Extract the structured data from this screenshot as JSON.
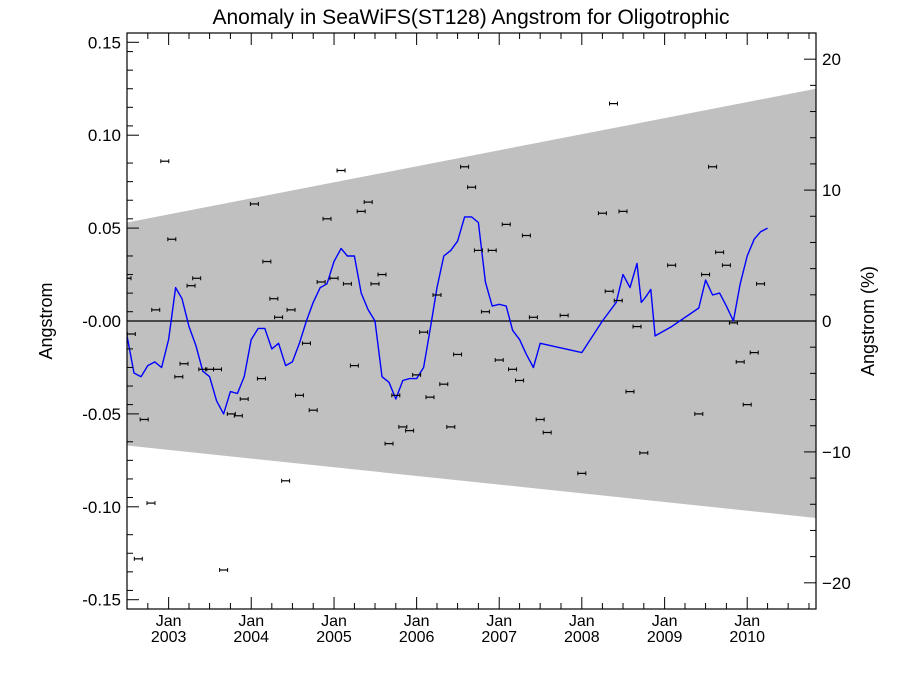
{
  "chart_data": {
    "type": "scatter",
    "title": "Anomaly in SeaWiFS(ST128) Angstrom for Oligotrophic",
    "ylabel": "Angstrom",
    "ylabel_right": "Angstrom (%)",
    "xlim": [
      "2002-07-01",
      "2010-11-01"
    ],
    "ylim": [
      -0.155,
      0.155
    ],
    "ylim_right": [
      -22,
      22
    ],
    "y_ticks": [
      {
        "value": 0.15,
        "label": "0.15"
      },
      {
        "value": 0.1,
        "label": "0.10"
      },
      {
        "value": 0.05,
        "label": "0.05"
      },
      {
        "value": 0.0,
        "label": "-0.00"
      },
      {
        "value": -0.05,
        "label": "-0.05"
      },
      {
        "value": -0.1,
        "label": "-0.10"
      },
      {
        "value": -0.15,
        "label": "-0.15"
      }
    ],
    "y_ticks_right": [
      {
        "value": 20,
        "label": "20"
      },
      {
        "value": 10,
        "label": "10"
      },
      {
        "value": 0,
        "label": "0"
      },
      {
        "value": -10,
        "label": "−10"
      },
      {
        "value": -20,
        "label": "−20"
      }
    ],
    "x_ticks": [
      {
        "date": "2003-01-01",
        "month": "Jan",
        "year": "2003"
      },
      {
        "date": "2004-01-01",
        "month": "Jan",
        "year": "2004"
      },
      {
        "date": "2005-01-01",
        "month": "Jan",
        "year": "2005"
      },
      {
        "date": "2006-01-01",
        "month": "Jan",
        "year": "2006"
      },
      {
        "date": "2007-01-01",
        "month": "Jan",
        "year": "2007"
      },
      {
        "date": "2008-01-01",
        "month": "Jan",
        "year": "2008"
      },
      {
        "date": "2009-01-01",
        "month": "Jan",
        "year": "2009"
      },
      {
        "date": "2010-01-01",
        "month": "Jan",
        "year": "2010"
      }
    ],
    "envelope": {
      "color": "#c0c0c0",
      "start": {
        "date": "2002-07-01",
        "upper": 0.053,
        "lower": -0.067
      },
      "end": {
        "date": "2010-11-01",
        "upper": 0.125,
        "lower": -0.106
      }
    },
    "zero_line": true,
    "points": [
      {
        "x": "2002-07-01",
        "y": 0.023
      },
      {
        "x": "2002-07-20",
        "y": -0.007
      },
      {
        "x": "2002-08-20",
        "y": -0.128
      },
      {
        "x": "2002-09-15",
        "y": -0.053
      },
      {
        "x": "2002-10-15",
        "y": -0.098
      },
      {
        "x": "2002-11-05",
        "y": 0.006
      },
      {
        "x": "2002-12-15",
        "y": 0.086
      },
      {
        "x": "2003-01-15",
        "y": 0.044
      },
      {
        "x": "2003-02-15",
        "y": -0.03
      },
      {
        "x": "2003-03-10",
        "y": -0.023
      },
      {
        "x": "2003-04-10",
        "y": 0.019
      },
      {
        "x": "2003-05-05",
        "y": 0.023
      },
      {
        "x": "2003-06-01",
        "y": -0.026
      },
      {
        "x": "2003-07-01",
        "y": -0.026
      },
      {
        "x": "2003-08-05",
        "y": -0.026
      },
      {
        "x": "2003-09-01",
        "y": -0.134
      },
      {
        "x": "2003-10-05",
        "y": -0.05
      },
      {
        "x": "2003-11-05",
        "y": -0.051
      },
      {
        "x": "2003-12-01",
        "y": -0.042
      },
      {
        "x": "2004-01-15",
        "y": 0.063
      },
      {
        "x": "2004-02-15",
        "y": -0.031
      },
      {
        "x": "2004-03-10",
        "y": 0.032
      },
      {
        "x": "2004-04-10",
        "y": 0.012
      },
      {
        "x": "2004-05-01",
        "y": 0.002
      },
      {
        "x": "2004-06-01",
        "y": -0.086
      },
      {
        "x": "2004-06-25",
        "y": 0.006
      },
      {
        "x": "2004-08-01",
        "y": -0.04
      },
      {
        "x": "2004-09-01",
        "y": -0.012
      },
      {
        "x": "2004-10-01",
        "y": -0.048
      },
      {
        "x": "2004-11-05",
        "y": 0.021
      },
      {
        "x": "2004-12-01",
        "y": 0.055
      },
      {
        "x": "2005-01-01",
        "y": 0.023
      },
      {
        "x": "2005-02-01",
        "y": 0.081
      },
      {
        "x": "2005-03-01",
        "y": 0.02
      },
      {
        "x": "2005-04-01",
        "y": -0.024
      },
      {
        "x": "2005-05-01",
        "y": 0.059
      },
      {
        "x": "2005-06-01",
        "y": 0.064
      },
      {
        "x": "2005-07-01",
        "y": 0.02
      },
      {
        "x": "2005-08-01",
        "y": 0.025
      },
      {
        "x": "2005-09-01",
        "y": -0.066
      },
      {
        "x": "2005-10-01",
        "y": -0.04
      },
      {
        "x": "2005-11-01",
        "y": -0.057
      },
      {
        "x": "2005-12-01",
        "y": -0.059
      },
      {
        "x": "2006-01-01",
        "y": -0.029
      },
      {
        "x": "2006-02-01",
        "y": -0.006
      },
      {
        "x": "2006-03-01",
        "y": -0.041
      },
      {
        "x": "2006-04-01",
        "y": 0.014
      },
      {
        "x": "2006-05-01",
        "y": -0.034
      },
      {
        "x": "2006-06-01",
        "y": -0.057
      },
      {
        "x": "2006-07-01",
        "y": -0.018
      },
      {
        "x": "2006-08-01",
        "y": 0.083
      },
      {
        "x": "2006-09-01",
        "y": 0.072
      },
      {
        "x": "2006-10-01",
        "y": 0.038
      },
      {
        "x": "2006-11-01",
        "y": 0.005
      },
      {
        "x": "2006-12-01",
        "y": 0.038
      },
      {
        "x": "2007-01-01",
        "y": -0.021
      },
      {
        "x": "2007-02-01",
        "y": 0.052
      },
      {
        "x": "2007-03-01",
        "y": -0.026
      },
      {
        "x": "2007-04-01",
        "y": -0.032
      },
      {
        "x": "2007-05-01",
        "y": 0.046
      },
      {
        "x": "2007-06-01",
        "y": 0.002
      },
      {
        "x": "2007-07-01",
        "y": -0.053
      },
      {
        "x": "2007-08-01",
        "y": -0.06
      },
      {
        "x": "2007-10-15",
        "y": 0.003
      },
      {
        "x": "2008-01-01",
        "y": -0.082
      },
      {
        "x": "2008-04-01",
        "y": 0.058
      },
      {
        "x": "2008-05-01",
        "y": 0.016
      },
      {
        "x": "2008-05-20",
        "y": 0.117
      },
      {
        "x": "2008-06-10",
        "y": 0.011
      },
      {
        "x": "2008-07-01",
        "y": 0.059
      },
      {
        "x": "2008-08-01",
        "y": -0.038
      },
      {
        "x": "2008-09-01",
        "y": -0.003
      },
      {
        "x": "2008-10-01",
        "y": -0.071
      },
      {
        "x": "2009-02-01",
        "y": 0.03
      },
      {
        "x": "2009-06-01",
        "y": -0.05
      },
      {
        "x": "2009-07-01",
        "y": 0.025
      },
      {
        "x": "2009-08-01",
        "y": 0.083
      },
      {
        "x": "2009-09-01",
        "y": 0.037
      },
      {
        "x": "2009-10-01",
        "y": 0.03
      },
      {
        "x": "2009-11-01",
        "y": -0.001
      },
      {
        "x": "2009-12-01",
        "y": -0.022
      },
      {
        "x": "2010-01-01",
        "y": -0.045
      },
      {
        "x": "2010-02-01",
        "y": -0.017
      },
      {
        "x": "2010-03-01",
        "y": 0.02
      }
    ],
    "series": [
      {
        "color": "#0000ff",
        "points": [
          {
            "x": "2002-07-01",
            "y": -0.008
          },
          {
            "x": "2002-08-01",
            "y": -0.028
          },
          {
            "x": "2002-09-01",
            "y": -0.03
          },
          {
            "x": "2002-10-01",
            "y": -0.024
          },
          {
            "x": "2002-11-01",
            "y": -0.022
          },
          {
            "x": "2002-12-01",
            "y": -0.025
          },
          {
            "x": "2003-01-01",
            "y": -0.01
          },
          {
            "x": "2003-02-01",
            "y": 0.018
          },
          {
            "x": "2003-03-01",
            "y": 0.012
          },
          {
            "x": "2003-04-01",
            "y": -0.003
          },
          {
            "x": "2003-05-01",
            "y": -0.013
          },
          {
            "x": "2003-06-01",
            "y": -0.027
          },
          {
            "x": "2003-07-01",
            "y": -0.03
          },
          {
            "x": "2003-08-01",
            "y": -0.043
          },
          {
            "x": "2003-09-01",
            "y": -0.05
          },
          {
            "x": "2003-10-01",
            "y": -0.038
          },
          {
            "x": "2003-11-01",
            "y": -0.039
          },
          {
            "x": "2003-12-01",
            "y": -0.03
          },
          {
            "x": "2004-01-01",
            "y": -0.01
          },
          {
            "x": "2004-02-01",
            "y": -0.004
          },
          {
            "x": "2004-03-01",
            "y": -0.004
          },
          {
            "x": "2004-04-01",
            "y": -0.015
          },
          {
            "x": "2004-05-01",
            "y": -0.012
          },
          {
            "x": "2004-06-01",
            "y": -0.024
          },
          {
            "x": "2004-07-01",
            "y": -0.022
          },
          {
            "x": "2004-08-01",
            "y": -0.012
          },
          {
            "x": "2004-09-01",
            "y": 0.0
          },
          {
            "x": "2004-10-01",
            "y": 0.01
          },
          {
            "x": "2004-11-01",
            "y": 0.018
          },
          {
            "x": "2004-12-01",
            "y": 0.02
          },
          {
            "x": "2005-01-01",
            "y": 0.032
          },
          {
            "x": "2005-02-01",
            "y": 0.039
          },
          {
            "x": "2005-03-01",
            "y": 0.035
          },
          {
            "x": "2005-04-01",
            "y": 0.035
          },
          {
            "x": "2005-05-01",
            "y": 0.015
          },
          {
            "x": "2005-06-01",
            "y": 0.006
          },
          {
            "x": "2005-07-01",
            "y": 0.0
          },
          {
            "x": "2005-08-01",
            "y": -0.03
          },
          {
            "x": "2005-09-01",
            "y": -0.033
          },
          {
            "x": "2005-10-01",
            "y": -0.042
          },
          {
            "x": "2005-11-01",
            "y": -0.032
          },
          {
            "x": "2005-12-01",
            "y": -0.031
          },
          {
            "x": "2006-01-01",
            "y": -0.031
          },
          {
            "x": "2006-02-01",
            "y": -0.025
          },
          {
            "x": "2006-03-01",
            "y": -0.005
          },
          {
            "x": "2006-04-01",
            "y": 0.018
          },
          {
            "x": "2006-05-01",
            "y": 0.035
          },
          {
            "x": "2006-06-01",
            "y": 0.038
          },
          {
            "x": "2006-07-01",
            "y": 0.043
          },
          {
            "x": "2006-08-01",
            "y": 0.056
          },
          {
            "x": "2006-09-01",
            "y": 0.056
          },
          {
            "x": "2006-10-01",
            "y": 0.053
          },
          {
            "x": "2006-11-01",
            "y": 0.021
          },
          {
            "x": "2006-12-01",
            "y": 0.008
          },
          {
            "x": "2007-01-01",
            "y": 0.009
          },
          {
            "x": "2007-02-01",
            "y": 0.008
          },
          {
            "x": "2007-03-01",
            "y": -0.005
          },
          {
            "x": "2007-04-01",
            "y": -0.01
          },
          {
            "x": "2007-05-01",
            "y": -0.018
          },
          {
            "x": "2007-06-01",
            "y": -0.025
          },
          {
            "x": "2007-07-01",
            "y": -0.012
          },
          {
            "x": "2008-01-01",
            "y": -0.017
          },
          {
            "x": "2008-04-01",
            "y": 0.0
          },
          {
            "x": "2008-06-01",
            "y": 0.01
          },
          {
            "x": "2008-07-01",
            "y": 0.025
          },
          {
            "x": "2008-08-01",
            "y": 0.018
          },
          {
            "x": "2008-09-01",
            "y": 0.031
          },
          {
            "x": "2008-09-20",
            "y": 0.01
          },
          {
            "x": "2008-10-10",
            "y": 0.013
          },
          {
            "x": "2008-11-01",
            "y": 0.017
          },
          {
            "x": "2008-11-20",
            "y": -0.008
          },
          {
            "x": "2009-02-01",
            "y": -0.003
          },
          {
            "x": "2009-06-01",
            "y": 0.007
          },
          {
            "x": "2009-07-01",
            "y": 0.022
          },
          {
            "x": "2009-08-01",
            "y": 0.014
          },
          {
            "x": "2009-09-01",
            "y": 0.015
          },
          {
            "x": "2009-10-01",
            "y": 0.008
          },
          {
            "x": "2009-11-01",
            "y": 0.0
          },
          {
            "x": "2009-12-01",
            "y": 0.02
          },
          {
            "x": "2010-01-01",
            "y": 0.035
          },
          {
            "x": "2010-02-01",
            "y": 0.044
          },
          {
            "x": "2010-03-01",
            "y": 0.048
          },
          {
            "x": "2010-04-01",
            "y": 0.05
          }
        ]
      }
    ]
  }
}
